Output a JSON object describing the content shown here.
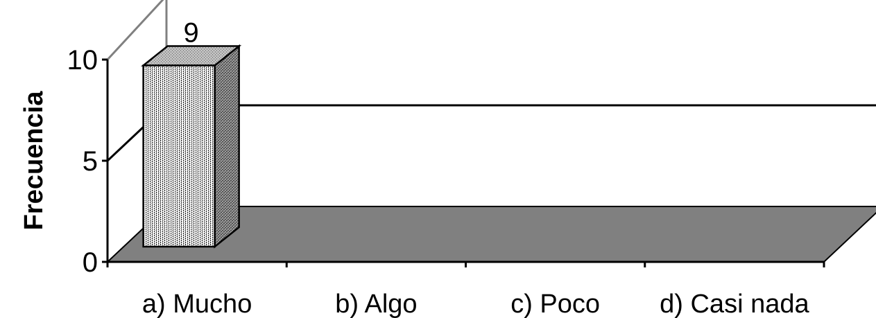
{
  "chart_data": {
    "type": "bar",
    "style": "3d-column",
    "categories": [
      "a)  Mucho",
      "b)  Algo",
      "c)  Poco",
      "d)  Casi nada"
    ],
    "values": [
      9,
      0,
      0,
      0
    ],
    "data_labels": [
      "9",
      "",
      "",
      ""
    ],
    "title": "",
    "xlabel": "",
    "ylabel": "Frecuencia",
    "ylim": [
      0,
      10
    ],
    "yticks": [
      0,
      5,
      10
    ],
    "ytick_labels": [
      "0",
      "5",
      "10"
    ],
    "grid": true,
    "legend": "none",
    "colors": {
      "floor": "#808080",
      "bar_front_bg": "#ffffff",
      "bar_side_bg": "#9a9a9a",
      "bar_top_bg": "#bdbdbd",
      "wall_line": "#808080",
      "axis": "#000000"
    }
  }
}
